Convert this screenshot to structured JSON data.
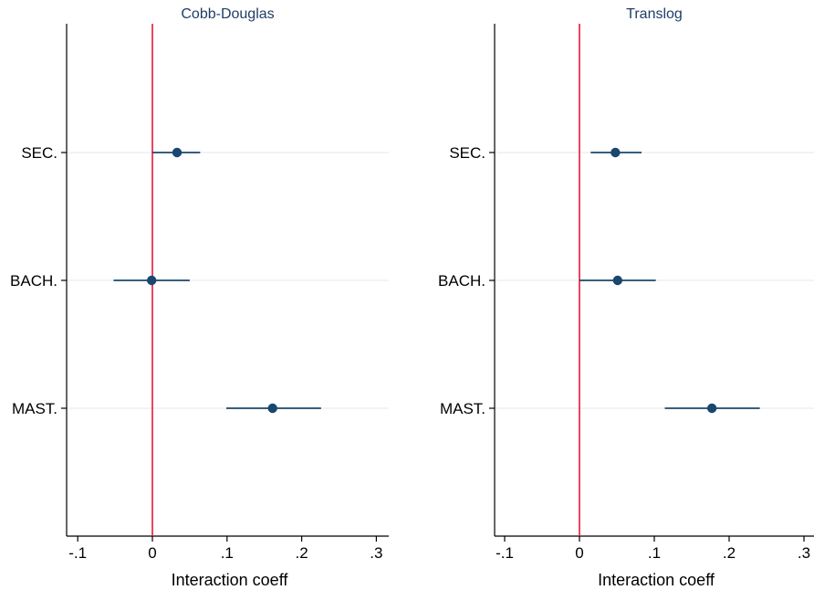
{
  "chart_data": [
    {
      "type": "scatter",
      "title": "Cobb-Douglas",
      "xlabel": "Interaction coeff",
      "ylabel": "",
      "xlim": [
        -0.115,
        0.315
      ],
      "xticks": [
        {
          "value": -0.1,
          "label": "-.1"
        },
        {
          "value": 0,
          "label": "0"
        },
        {
          "value": 0.1,
          "label": ".1"
        },
        {
          "value": 0.2,
          "label": ".2"
        },
        {
          "value": 0.3,
          "label": ".3"
        }
      ],
      "categories": [
        "SEC.",
        "BACH.",
        "MAST."
      ],
      "series": [
        {
          "estimates": [
            0.033,
            -0.001,
            0.161
          ],
          "ci_low": [
            0.0,
            -0.052,
            0.099
          ],
          "ci_high": [
            0.064,
            0.05,
            0.226
          ]
        }
      ],
      "reference_line": {
        "x": 0,
        "color": "#e8173a"
      },
      "grid": true,
      "colors": {
        "series": "#1a476f",
        "grid": "#ececec",
        "axis": "#000000"
      }
    },
    {
      "type": "scatter",
      "title": "Translog",
      "xlabel": "Interaction coeff",
      "ylabel": "",
      "xlim": [
        -0.115,
        0.315
      ],
      "xticks": [
        {
          "value": -0.1,
          "label": "-.1"
        },
        {
          "value": 0,
          "label": "0"
        },
        {
          "value": 0.1,
          "label": ".1"
        },
        {
          "value": 0.2,
          "label": ".2"
        },
        {
          "value": 0.3,
          "label": ".3"
        }
      ],
      "categories": [
        "SEC.",
        "BACH.",
        "MAST."
      ],
      "series": [
        {
          "estimates": [
            0.048,
            0.051,
            0.177
          ],
          "ci_low": [
            0.015,
            0.0,
            0.114
          ],
          "ci_high": [
            0.083,
            0.102,
            0.241
          ]
        }
      ],
      "reference_line": {
        "x": 0,
        "color": "#e8173a"
      },
      "grid": true,
      "colors": {
        "series": "#1a476f",
        "grid": "#ececec",
        "axis": "#000000"
      }
    }
  ]
}
